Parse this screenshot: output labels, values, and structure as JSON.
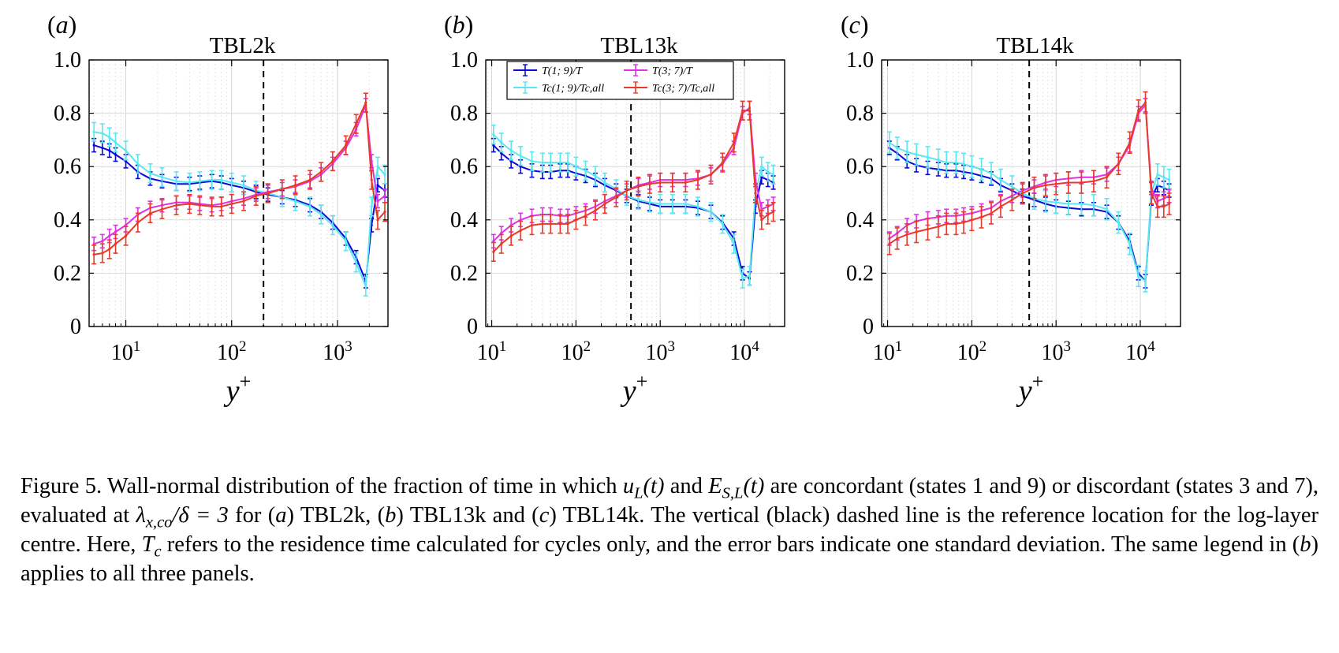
{
  "figure": {
    "caption_label": "Figure 5.",
    "caption_text": "Wall-normal distribution of the fraction of time in which uL(t) and ES,L(t) are concordant (states 1 and 9) or discordant (states 3 and 7), evaluated at λx,co/δ = 3 for (a) TBL2k, (b) TBL13k and (c) TBL14k. The vertical (black) dashed line is the reference location for the log-layer centre. Here, Tc refers to the residence time calculated for cycles only, and the error bars indicate one standard deviation. The same legend in (b) applies to all three panels.",
    "caption_segments": [
      {
        "t": "Figure 5.",
        "c": "fig"
      },
      {
        "t": "  Wall-normal distribution of the fraction of time in which "
      },
      {
        "t": "u",
        "c": "m"
      },
      {
        "t": "L",
        "c": "msub"
      },
      {
        "t": "(t)",
        "c": "m"
      },
      {
        "t": " and "
      },
      {
        "t": "E",
        "c": "m"
      },
      {
        "t": "S,L",
        "c": "msub"
      },
      {
        "t": "(t)",
        "c": "m"
      },
      {
        "t": " are concordant (states 1 and 9) or discordant (states 3 and 7), evaluated at "
      },
      {
        "t": "λ",
        "c": "m"
      },
      {
        "t": "x,co",
        "c": "msub"
      },
      {
        "t": "/δ = 3",
        "c": "m"
      },
      {
        "t": " for ("
      },
      {
        "t": "a",
        "c": "m"
      },
      {
        "t": ") TBL2k, ("
      },
      {
        "t": "b",
        "c": "m"
      },
      {
        "t": ") TBL13k and ("
      },
      {
        "t": "c",
        "c": "m"
      },
      {
        "t": ") TBL14k. The vertical (black) dashed line is the reference location for the log-layer centre. Here, "
      },
      {
        "t": "T",
        "c": "m"
      },
      {
        "t": "c",
        "c": "msub"
      },
      {
        "t": " refers to the residence time calculated for cycles only, and the error bars indicate one standard deviation. The same legend in ("
      },
      {
        "t": "b",
        "c": "m"
      },
      {
        "t": ") applies to all three panels."
      }
    ]
  },
  "chart_data": [
    {
      "type": "line",
      "panel_label": "(a)",
      "title": "TBL2k",
      "xlabel": "y+",
      "xscale": "log",
      "xlim": [
        4.5,
        3000
      ],
      "ylim": [
        0,
        1
      ],
      "xticks": [
        {
          "value": 10,
          "label": "10^1"
        },
        {
          "value": 100,
          "label": "10^2"
        },
        {
          "value": 1000,
          "label": "10^3"
        }
      ],
      "yticks": [
        0,
        0.2,
        0.4,
        0.6,
        0.8,
        1.0
      ],
      "ytick_labels": [
        "0",
        "0.2",
        "0.4",
        "0.6",
        "0.8",
        "1.0"
      ],
      "grid": true,
      "reference_line_x": 200,
      "series": [
        {
          "name": "T(1; 9)/T",
          "color": "#0a0ad8",
          "err": 0.025,
          "x": [
            5,
            6,
            7,
            8,
            10,
            13,
            17,
            22,
            30,
            40,
            50,
            65,
            80,
            100,
            130,
            170,
            220,
            300,
            400,
            550,
            700,
            900,
            1200,
            1500,
            1850,
            2100,
            2400,
            2800
          ],
          "y": [
            0.68,
            0.67,
            0.66,
            0.645,
            0.62,
            0.58,
            0.555,
            0.545,
            0.535,
            0.535,
            0.54,
            0.545,
            0.54,
            0.53,
            0.52,
            0.505,
            0.495,
            0.485,
            0.475,
            0.455,
            0.43,
            0.39,
            0.33,
            0.26,
            0.17,
            0.38,
            0.53,
            0.51
          ]
        },
        {
          "name": "Tc(1; 9)/Tc,all",
          "color": "#5ae8f0",
          "err": 0.035,
          "x": [
            5,
            6,
            7,
            8,
            10,
            13,
            17,
            22,
            30,
            40,
            50,
            65,
            80,
            100,
            130,
            170,
            220,
            300,
            400,
            550,
            700,
            900,
            1200,
            1500,
            1850,
            2100,
            2400,
            2800
          ],
          "y": [
            0.73,
            0.725,
            0.71,
            0.69,
            0.66,
            0.61,
            0.575,
            0.56,
            0.545,
            0.54,
            0.545,
            0.55,
            0.55,
            0.54,
            0.53,
            0.51,
            0.5,
            0.485,
            0.47,
            0.45,
            0.42,
            0.38,
            0.32,
            0.24,
            0.15,
            0.45,
            0.6,
            0.57
          ]
        },
        {
          "name": "T(3; 7)/T",
          "color": "#e030e8",
          "err": 0.025,
          "x": [
            5,
            6,
            7,
            8,
            10,
            13,
            17,
            22,
            30,
            40,
            50,
            65,
            80,
            100,
            130,
            170,
            220,
            300,
            400,
            550,
            700,
            900,
            1200,
            1500,
            1850,
            2100,
            2400,
            2800
          ],
          "y": [
            0.31,
            0.32,
            0.34,
            0.355,
            0.38,
            0.42,
            0.445,
            0.455,
            0.465,
            0.465,
            0.46,
            0.455,
            0.46,
            0.47,
            0.48,
            0.495,
            0.505,
            0.515,
            0.525,
            0.545,
            0.57,
            0.61,
            0.67,
            0.74,
            0.83,
            0.62,
            0.47,
            0.49
          ]
        },
        {
          "name": "Tc(3; 7)/Tc,all",
          "color": "#e83a28",
          "err": 0.035,
          "x": [
            5,
            6,
            7,
            8,
            10,
            13,
            17,
            22,
            30,
            40,
            50,
            65,
            80,
            100,
            130,
            170,
            220,
            300,
            400,
            550,
            700,
            900,
            1200,
            1500,
            1850,
            2100,
            2400,
            2800
          ],
          "y": [
            0.27,
            0.275,
            0.29,
            0.31,
            0.34,
            0.39,
            0.425,
            0.44,
            0.455,
            0.46,
            0.455,
            0.45,
            0.45,
            0.46,
            0.47,
            0.49,
            0.5,
            0.515,
            0.53,
            0.55,
            0.58,
            0.62,
            0.68,
            0.76,
            0.84,
            0.55,
            0.4,
            0.43
          ]
        }
      ]
    },
    {
      "type": "line",
      "panel_label": "(b)",
      "title": "TBL13k",
      "xlabel": "y+",
      "xscale": "log",
      "xlim": [
        8.5,
        30000
      ],
      "ylim": [
        0,
        1
      ],
      "xticks": [
        {
          "value": 10,
          "label": "10^1"
        },
        {
          "value": 100,
          "label": "10^2"
        },
        {
          "value": 1000,
          "label": "10^3"
        },
        {
          "value": 10000,
          "label": "10^4"
        }
      ],
      "yticks": [
        0,
        0.2,
        0.4,
        0.6,
        0.8,
        1.0
      ],
      "ytick_labels": [
        "0",
        "0.2",
        "0.4",
        "0.6",
        "0.8",
        "1.0"
      ],
      "grid": true,
      "reference_line_x": 450,
      "legend_position": "top-center",
      "series": [
        {
          "name": "T(1; 9)/T",
          "color": "#0a0ad8",
          "err": 0.025,
          "x": [
            10.5,
            13,
            17,
            22,
            30,
            40,
            50,
            65,
            80,
            100,
            130,
            170,
            220,
            300,
            400,
            550,
            750,
            1000,
            1400,
            2000,
            2800,
            4000,
            5500,
            7500,
            9500,
            11500,
            13500,
            16000,
            19000,
            22000
          ],
          "y": [
            0.68,
            0.65,
            0.62,
            0.6,
            0.585,
            0.58,
            0.58,
            0.585,
            0.585,
            0.575,
            0.565,
            0.55,
            0.53,
            0.51,
            0.49,
            0.47,
            0.46,
            0.45,
            0.45,
            0.45,
            0.445,
            0.43,
            0.39,
            0.33,
            0.2,
            0.18,
            0.45,
            0.56,
            0.55,
            0.54
          ]
        },
        {
          "name": "Tc(1; 9)/Tc,all",
          "color": "#5ae8f0",
          "err": 0.035,
          "x": [
            10.5,
            13,
            17,
            22,
            30,
            40,
            50,
            65,
            80,
            100,
            130,
            170,
            220,
            300,
            400,
            550,
            750,
            1000,
            1400,
            2000,
            2800,
            4000,
            5500,
            7500,
            9500,
            11500,
            13500,
            16000,
            19000,
            22000
          ],
          "y": [
            0.72,
            0.69,
            0.66,
            0.64,
            0.62,
            0.615,
            0.615,
            0.615,
            0.615,
            0.6,
            0.585,
            0.565,
            0.54,
            0.515,
            0.49,
            0.475,
            0.465,
            0.46,
            0.46,
            0.46,
            0.45,
            0.43,
            0.385,
            0.31,
            0.18,
            0.19,
            0.5,
            0.6,
            0.58,
            0.57
          ]
        },
        {
          "name": "T(3; 7)/T",
          "color": "#e030e8",
          "err": 0.025,
          "x": [
            10.5,
            13,
            17,
            22,
            30,
            40,
            50,
            65,
            80,
            100,
            130,
            170,
            220,
            300,
            400,
            550,
            750,
            1000,
            1400,
            2000,
            2800,
            4000,
            5500,
            7500,
            9500,
            11500,
            13500,
            16000,
            19000,
            22000
          ],
          "y": [
            0.32,
            0.35,
            0.38,
            0.4,
            0.415,
            0.42,
            0.42,
            0.415,
            0.415,
            0.425,
            0.435,
            0.45,
            0.47,
            0.49,
            0.51,
            0.53,
            0.54,
            0.55,
            0.55,
            0.55,
            0.555,
            0.57,
            0.61,
            0.67,
            0.8,
            0.82,
            0.55,
            0.44,
            0.45,
            0.46
          ]
        },
        {
          "name": "Tc(3; 7)/Tc,all",
          "color": "#e83a28",
          "err": 0.035,
          "x": [
            10.5,
            13,
            17,
            22,
            30,
            40,
            50,
            65,
            80,
            100,
            130,
            170,
            220,
            300,
            400,
            550,
            750,
            1000,
            1400,
            2000,
            2800,
            4000,
            5500,
            7500,
            9500,
            11500,
            13500,
            16000,
            19000,
            22000
          ],
          "y": [
            0.28,
            0.31,
            0.34,
            0.36,
            0.38,
            0.385,
            0.385,
            0.385,
            0.385,
            0.4,
            0.415,
            0.435,
            0.46,
            0.485,
            0.51,
            0.525,
            0.535,
            0.54,
            0.54,
            0.54,
            0.55,
            0.57,
            0.615,
            0.69,
            0.81,
            0.81,
            0.5,
            0.4,
            0.42,
            0.43
          ]
        }
      ]
    },
    {
      "type": "line",
      "panel_label": "(c)",
      "title": "TBL14k",
      "xlabel": "y+",
      "xscale": "log",
      "xlim": [
        8.5,
        30000
      ],
      "ylim": [
        0,
        1
      ],
      "xticks": [
        {
          "value": 10,
          "label": "10^1"
        },
        {
          "value": 100,
          "label": "10^2"
        },
        {
          "value": 1000,
          "label": "10^3"
        },
        {
          "value": 10000,
          "label": "10^4"
        }
      ],
      "yticks": [
        0,
        0.2,
        0.4,
        0.6,
        0.8,
        1.0
      ],
      "ytick_labels": [
        "0",
        "0.2",
        "0.4",
        "0.6",
        "0.8",
        "1.0"
      ],
      "grid": true,
      "reference_line_x": 480,
      "series": [
        {
          "name": "T(1; 9)/T",
          "color": "#0a0ad8",
          "err": 0.025,
          "x": [
            10.5,
            13,
            17,
            22,
            30,
            40,
            50,
            65,
            80,
            100,
            130,
            170,
            220,
            300,
            400,
            550,
            750,
            1000,
            1400,
            2000,
            2800,
            4000,
            5500,
            7500,
            9500,
            11500,
            13500,
            16000,
            19000,
            22000
          ],
          "y": [
            0.67,
            0.65,
            0.62,
            0.605,
            0.595,
            0.59,
            0.585,
            0.585,
            0.58,
            0.575,
            0.565,
            0.555,
            0.53,
            0.51,
            0.49,
            0.475,
            0.46,
            0.45,
            0.445,
            0.44,
            0.44,
            0.43,
            0.39,
            0.32,
            0.2,
            0.17,
            0.48,
            0.53,
            0.52,
            0.51
          ]
        },
        {
          "name": "Tc(1; 9)/Tc,all",
          "color": "#5ae8f0",
          "err": 0.04,
          "x": [
            10.5,
            13,
            17,
            22,
            30,
            40,
            50,
            65,
            80,
            100,
            130,
            170,
            220,
            300,
            400,
            550,
            750,
            1000,
            1400,
            2000,
            2800,
            4000,
            5500,
            7500,
            9500,
            11500,
            13500,
            16000,
            19000,
            22000
          ],
          "y": [
            0.69,
            0.67,
            0.655,
            0.645,
            0.635,
            0.625,
            0.615,
            0.615,
            0.61,
            0.6,
            0.59,
            0.575,
            0.55,
            0.525,
            0.5,
            0.48,
            0.47,
            0.465,
            0.46,
            0.46,
            0.455,
            0.44,
            0.39,
            0.31,
            0.19,
            0.17,
            0.5,
            0.57,
            0.56,
            0.55
          ]
        },
        {
          "name": "T(3; 7)/T",
          "color": "#e030e8",
          "err": 0.025,
          "x": [
            10.5,
            13,
            17,
            22,
            30,
            40,
            50,
            65,
            80,
            100,
            130,
            170,
            220,
            300,
            400,
            550,
            750,
            1000,
            1400,
            2000,
            2800,
            4000,
            5500,
            7500,
            9500,
            11500,
            13500,
            16000,
            19000,
            22000
          ],
          "y": [
            0.33,
            0.35,
            0.38,
            0.395,
            0.405,
            0.41,
            0.415,
            0.415,
            0.42,
            0.425,
            0.435,
            0.445,
            0.47,
            0.49,
            0.51,
            0.525,
            0.54,
            0.55,
            0.555,
            0.56,
            0.56,
            0.57,
            0.61,
            0.68,
            0.8,
            0.83,
            0.52,
            0.47,
            0.48,
            0.49
          ]
        },
        {
          "name": "Tc(3; 7)/Tc,all",
          "color": "#e83a28",
          "err": 0.04,
          "x": [
            10.5,
            13,
            17,
            22,
            30,
            40,
            50,
            65,
            80,
            100,
            130,
            170,
            220,
            300,
            400,
            550,
            750,
            1000,
            1400,
            2000,
            2800,
            4000,
            5500,
            7500,
            9500,
            11500,
            13500,
            16000,
            19000,
            22000
          ],
          "y": [
            0.31,
            0.33,
            0.345,
            0.355,
            0.365,
            0.375,
            0.385,
            0.385,
            0.39,
            0.4,
            0.41,
            0.425,
            0.45,
            0.475,
            0.5,
            0.52,
            0.53,
            0.535,
            0.54,
            0.54,
            0.545,
            0.56,
            0.61,
            0.69,
            0.81,
            0.84,
            0.5,
            0.45,
            0.45,
            0.46
          ]
        }
      ]
    }
  ]
}
